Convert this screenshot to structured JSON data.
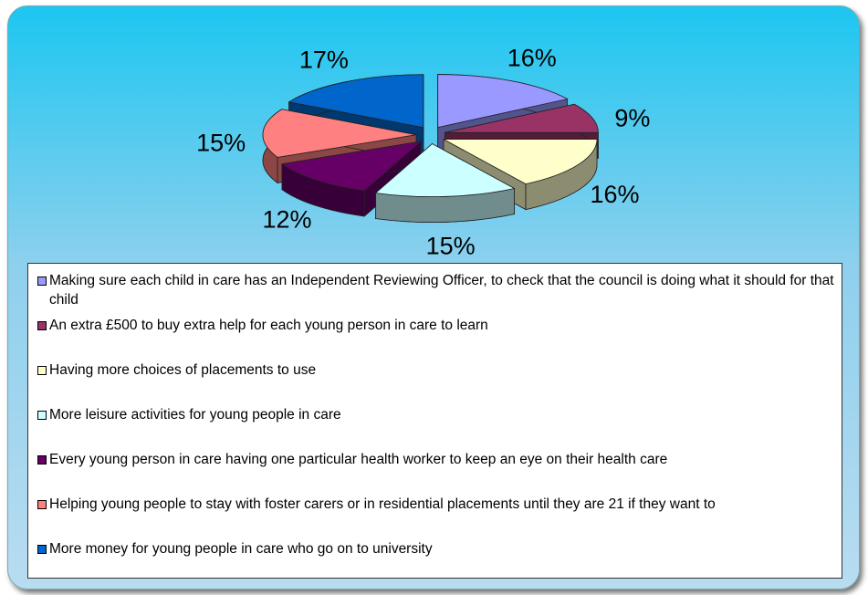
{
  "chart_data": {
    "type": "pie",
    "categories": [
      "Making sure each child in care has an Independent Reviewing Officer, to check that the council is doing what it should for that child",
      "An extra £500 to buy extra help for each young person in care to learn",
      "Having more choices of placements to use",
      "More leisure activities for young people in care",
      "Every young person in care having one particular health worker to keep an eye on their health care",
      "Helping young people to stay with foster carers or in residential placements until they are 21 if they want to",
      "More money for young people in care who go on to university"
    ],
    "values": [
      16,
      9,
      16,
      15,
      12,
      15,
      17
    ],
    "value_labels": [
      "16%",
      "9%",
      "16%",
      "15%",
      "12%",
      "15%",
      "17%"
    ],
    "colors": [
      "#9999ff",
      "#993366",
      "#ffffcc",
      "#ccffff",
      "#660066",
      "#ff8080",
      "#0066cc"
    ]
  }
}
